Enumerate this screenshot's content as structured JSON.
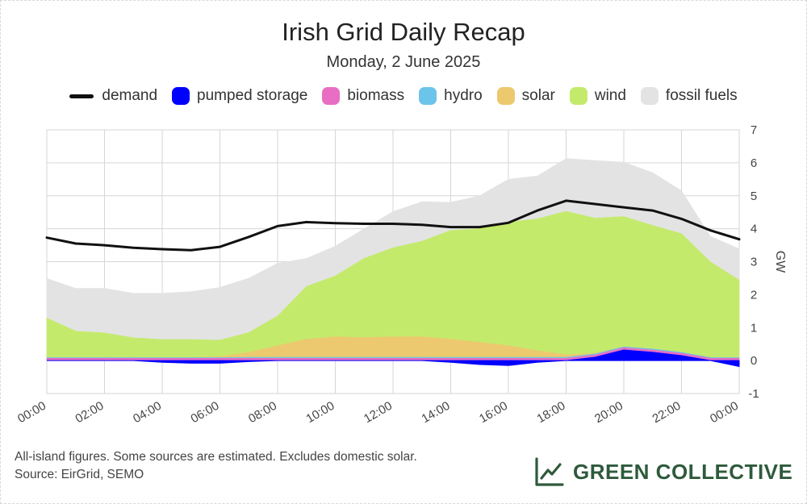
{
  "title": "Irish Grid Daily Recap",
  "subtitle": "Monday, 2 June 2025",
  "legend": [
    {
      "label": "demand",
      "color": "#111111",
      "kind": "line",
      "name": "legend-demand"
    },
    {
      "label": "pumped storage",
      "color": "#0000ff",
      "kind": "box",
      "name": "legend-pumped-storage"
    },
    {
      "label": "biomass",
      "color": "#e86ec4",
      "kind": "box",
      "name": "legend-biomass"
    },
    {
      "label": "hydro",
      "color": "#6cc4ea",
      "kind": "box",
      "name": "legend-hydro"
    },
    {
      "label": "solar",
      "color": "#ecc96e",
      "kind": "box",
      "name": "legend-solar"
    },
    {
      "label": "wind",
      "color": "#c4ea6c",
      "kind": "box",
      "name": "legend-wind"
    },
    {
      "label": "fossil fuels",
      "color": "#e3e3e3",
      "kind": "box",
      "name": "legend-fossil-fuels"
    }
  ],
  "footnote": {
    "line1": "All-island figures. Some sources are estimated. Excludes domestic solar.",
    "line2": "Source: EirGrid, SEMO"
  },
  "brand": {
    "name": "GREEN COLLECTIVE",
    "color": "#2e5a3c",
    "icon": "line-chart-icon"
  },
  "chart_data": {
    "type": "area",
    "title": "Irish Grid Daily Recap",
    "subtitle": "Monday, 2 June 2025",
    "ylabel": "GW",
    "ylim": [
      -1,
      7
    ],
    "yticks": [
      -1,
      0,
      1,
      2,
      3,
      4,
      5,
      6,
      7
    ],
    "xlim": [
      0,
      24
    ],
    "xticks": [
      0,
      2,
      4,
      6,
      8,
      10,
      12,
      14,
      16,
      18,
      20,
      22,
      24
    ],
    "xtick_labels": [
      "00:00",
      "02:00",
      "04:00",
      "06:00",
      "08:00",
      "10:00",
      "12:00",
      "14:00",
      "16:00",
      "18:00",
      "20:00",
      "22:00",
      "00:00"
    ],
    "grid": true,
    "legend_position": "top",
    "x": [
      0,
      1,
      2,
      3,
      4,
      5,
      6,
      7,
      8,
      9,
      10,
      11,
      12,
      13,
      14,
      15,
      16,
      17,
      18,
      19,
      20,
      21,
      22,
      23,
      24
    ],
    "series": [
      {
        "name": "pumped storage",
        "color": "#0000ff",
        "kind": "stacked_signed",
        "values": [
          0,
          0,
          0,
          0,
          -0.05,
          -0.08,
          -0.08,
          -0.03,
          0,
          0,
          0,
          0,
          0,
          0,
          -0.05,
          -0.12,
          -0.15,
          -0.05,
          0,
          0.1,
          0.32,
          0.25,
          0.15,
          0,
          -0.18
        ]
      },
      {
        "name": "biomass",
        "color": "#e86ec4",
        "kind": "stacked",
        "values": [
          0.07,
          0.07,
          0.07,
          0.07,
          0.07,
          0.07,
          0.07,
          0.07,
          0.07,
          0.07,
          0.07,
          0.07,
          0.07,
          0.07,
          0.07,
          0.07,
          0.07,
          0.07,
          0.07,
          0.07,
          0.07,
          0.07,
          0.07,
          0.07,
          0.07
        ]
      },
      {
        "name": "hydro",
        "color": "#6cc4ea",
        "kind": "stacked",
        "values": [
          0.02,
          0.02,
          0.02,
          0.02,
          0.02,
          0.02,
          0.02,
          0.03,
          0.03,
          0.03,
          0.03,
          0.03,
          0.03,
          0.03,
          0.03,
          0.03,
          0.03,
          0.03,
          0.03,
          0.03,
          0.03,
          0.03,
          0.03,
          0.02,
          0.02
        ]
      },
      {
        "name": "solar",
        "color": "#ecc96e",
        "kind": "stacked",
        "values": [
          0,
          0,
          0,
          0,
          0,
          0,
          0.03,
          0.15,
          0.35,
          0.55,
          0.62,
          0.6,
          0.62,
          0.62,
          0.55,
          0.45,
          0.35,
          0.2,
          0.08,
          0.02,
          0,
          0,
          0,
          0,
          0
        ]
      },
      {
        "name": "wind",
        "color": "#c4ea6c",
        "kind": "stacked",
        "values": [
          1.2,
          0.8,
          0.75,
          0.6,
          0.55,
          0.55,
          0.5,
          0.6,
          0.9,
          1.6,
          1.85,
          2.4,
          2.7,
          2.9,
          3.3,
          3.45,
          3.75,
          4.0,
          4.35,
          4.1,
          3.95,
          3.75,
          3.6,
          2.9,
          2.35
        ]
      },
      {
        "name": "fossil fuels",
        "color": "#e3e3e3",
        "kind": "stacked",
        "values": [
          1.2,
          1.3,
          1.35,
          1.35,
          1.4,
          1.45,
          1.6,
          1.65,
          1.6,
          0.85,
          0.9,
          0.9,
          1.1,
          1.2,
          0.85,
          1.0,
          1.3,
          1.3,
          1.6,
          1.75,
          1.65,
          1.6,
          1.3,
          0.78,
          0.95
        ]
      },
      {
        "name": "demand",
        "color": "#111111",
        "kind": "line",
        "values": [
          3.73,
          3.55,
          3.5,
          3.42,
          3.38,
          3.35,
          3.45,
          3.75,
          4.08,
          4.2,
          4.17,
          4.15,
          4.15,
          4.12,
          4.05,
          4.05,
          4.18,
          4.55,
          4.85,
          4.75,
          4.65,
          4.55,
          4.3,
          3.95,
          3.68
        ]
      }
    ]
  }
}
